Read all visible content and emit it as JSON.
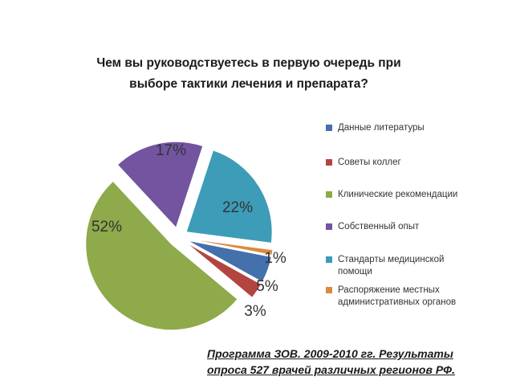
{
  "title": {
    "line1": "Чем вы руководствуетесь в первую очередь при",
    "line2": "выборе тактики лечения и препарата?"
  },
  "chart_data": {
    "type": "pie",
    "exploded": true,
    "categories": [
      "Данные литературы",
      "Советы коллег",
      "Клинические рекомендации",
      "Собственный  опыт",
      "Стандарты медицинской помощи",
      "Распоряжение местных административных органов"
    ],
    "values": [
      5,
      3,
      52,
      17,
      22,
      1
    ],
    "labels": [
      "5%",
      "3%",
      "52%",
      "17%",
      "22%",
      "1%"
    ],
    "colors": [
      "#4470AB",
      "#B34541",
      "#8EAA4A",
      "#7254A1",
      "#3D9CB8",
      "#DB8A3E"
    ],
    "legend_position": "right"
  },
  "legend": {
    "items": [
      {
        "label": "Данные литературы",
        "color": "#4470AB"
      },
      {
        "label": "Советы коллег",
        "color": "#B34541"
      },
      {
        "label": "Клинические рекомендации",
        "color": "#8EAA4A"
      },
      {
        "label": "Собственный  опыт",
        "color": "#7254A1"
      },
      {
        "label": "Стандарты медицинской помощи",
        "color": "#3D9CB8"
      },
      {
        "label": "Распоряжение местных административных органов",
        "color": "#DB8A3E"
      }
    ]
  },
  "source": {
    "line1": "Программа ЗОВ.  2009-2010 гг. Результаты",
    "line2": "опроса 527 врачей различных регионов РФ."
  }
}
